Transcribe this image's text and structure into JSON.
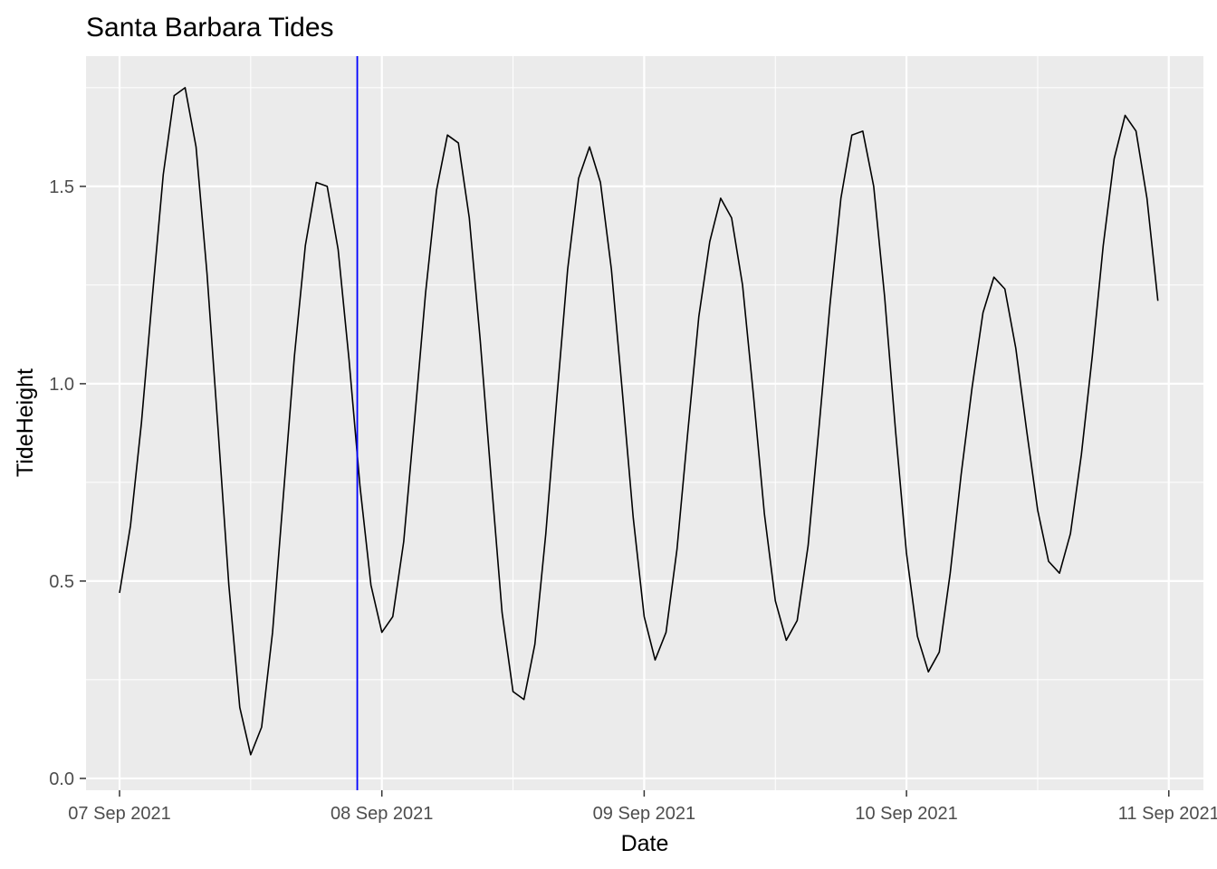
{
  "chart_data": {
    "type": "line",
    "title": "Santa Barbara Tides",
    "xlabel": "Date",
    "ylabel": "TideHeight",
    "x_ticks": [
      "07 Sep 2021",
      "08 Sep 2021",
      "09 Sep 2021",
      "10 Sep 2021",
      "11 Sep 2021"
    ],
    "y_ticks": [
      "0.0",
      "0.5",
      "1.0",
      "1.5"
    ],
    "xlim": [
      "2021-09-06 20:56",
      "2021-09-11 03:10"
    ],
    "ylim": [
      -0.03,
      1.83
    ],
    "grid": true,
    "vline": {
      "x": "2021-09-07 21:45",
      "color": "#0000ff"
    },
    "colors": {
      "panel": "#ebebeb",
      "grid": "#ffffff",
      "line": "#000000",
      "vline": "#0000ff"
    },
    "series": [
      {
        "x": [
          "2021-09-07 00:00",
          "2021-09-07 01:00",
          "2021-09-07 02:00",
          "2021-09-07 03:00",
          "2021-09-07 04:00",
          "2021-09-07 05:00",
          "2021-09-07 06:00",
          "2021-09-07 07:00",
          "2021-09-07 08:00",
          "2021-09-07 09:00",
          "2021-09-07 10:00",
          "2021-09-07 11:00",
          "2021-09-07 12:00",
          "2021-09-07 13:00",
          "2021-09-07 14:00",
          "2021-09-07 15:00",
          "2021-09-07 16:00",
          "2021-09-07 17:00",
          "2021-09-07 18:00",
          "2021-09-07 19:00",
          "2021-09-07 20:00",
          "2021-09-07 21:00",
          "2021-09-07 22:00",
          "2021-09-07 23:00",
          "2021-09-08 00:00",
          "2021-09-08 01:00",
          "2021-09-08 02:00",
          "2021-09-08 03:00",
          "2021-09-08 04:00",
          "2021-09-08 05:00",
          "2021-09-08 06:00",
          "2021-09-08 07:00",
          "2021-09-08 08:00",
          "2021-09-08 09:00",
          "2021-09-08 10:00",
          "2021-09-08 11:00",
          "2021-09-08 12:00",
          "2021-09-08 13:00",
          "2021-09-08 14:00",
          "2021-09-08 15:00",
          "2021-09-08 16:00",
          "2021-09-08 17:00",
          "2021-09-08 18:00",
          "2021-09-08 19:00",
          "2021-09-08 20:00",
          "2021-09-08 21:00",
          "2021-09-08 22:00",
          "2021-09-08 23:00",
          "2021-09-09 00:00",
          "2021-09-09 01:00",
          "2021-09-09 02:00",
          "2021-09-09 03:00",
          "2021-09-09 04:00",
          "2021-09-09 05:00",
          "2021-09-09 06:00",
          "2021-09-09 07:00",
          "2021-09-09 08:00",
          "2021-09-09 09:00",
          "2021-09-09 10:00",
          "2021-09-09 11:00",
          "2021-09-09 12:00",
          "2021-09-09 13:00",
          "2021-09-09 14:00",
          "2021-09-09 15:00",
          "2021-09-09 16:00",
          "2021-09-09 17:00",
          "2021-09-09 18:00",
          "2021-09-09 19:00",
          "2021-09-09 20:00",
          "2021-09-09 21:00",
          "2021-09-09 22:00",
          "2021-09-09 23:00",
          "2021-09-10 00:00",
          "2021-09-10 01:00",
          "2021-09-10 02:00",
          "2021-09-10 03:00",
          "2021-09-10 04:00",
          "2021-09-10 05:00",
          "2021-09-10 06:00",
          "2021-09-10 07:00",
          "2021-09-10 08:00",
          "2021-09-10 09:00",
          "2021-09-10 10:00",
          "2021-09-10 11:00",
          "2021-09-10 12:00",
          "2021-09-10 13:00",
          "2021-09-10 14:00",
          "2021-09-10 15:00",
          "2021-09-10 16:00",
          "2021-09-10 17:00",
          "2021-09-10 18:00",
          "2021-09-10 19:00",
          "2021-09-10 20:00",
          "2021-09-10 21:00",
          "2021-09-10 22:00",
          "2021-09-10 23:00"
        ],
        "values": [
          0.47,
          0.64,
          0.9,
          1.22,
          1.53,
          1.73,
          1.75,
          1.6,
          1.28,
          0.89,
          0.49,
          0.18,
          0.06,
          0.13,
          0.37,
          0.72,
          1.07,
          1.35,
          1.51,
          1.5,
          1.34,
          1.06,
          0.74,
          0.49,
          0.37,
          0.41,
          0.6,
          0.91,
          1.23,
          1.49,
          1.63,
          1.61,
          1.42,
          1.11,
          0.76,
          0.42,
          0.22,
          0.2,
          0.34,
          0.62,
          0.96,
          1.29,
          1.52,
          1.6,
          1.51,
          1.29,
          0.98,
          0.66,
          0.41,
          0.3,
          0.37,
          0.58,
          0.88,
          1.17,
          1.36,
          1.47,
          1.42,
          1.25,
          0.97,
          0.67,
          0.45,
          0.35,
          0.4,
          0.59,
          0.89,
          1.2,
          1.47,
          1.63,
          1.64,
          1.5,
          1.22,
          0.88,
          0.57,
          0.36,
          0.27,
          0.32,
          0.52,
          0.77,
          0.99,
          1.18,
          1.27,
          1.24,
          1.09,
          0.88,
          0.68,
          0.55,
          0.52,
          0.62,
          0.82,
          1.07,
          1.35,
          1.57,
          1.68,
          1.64,
          1.47,
          1.21
        ]
      }
    ]
  }
}
